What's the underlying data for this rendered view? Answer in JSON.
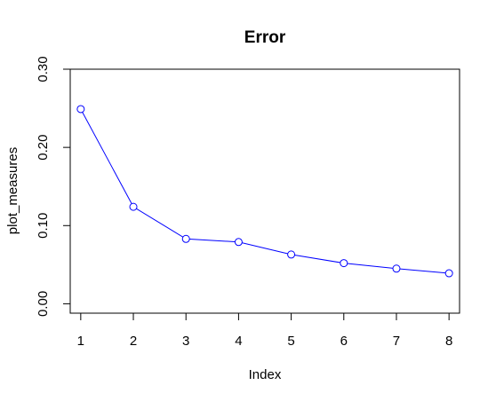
{
  "chart_data": {
    "type": "line",
    "title": "Error",
    "xlabel": "Index",
    "ylabel": "plot_measures",
    "x": [
      1,
      2,
      3,
      4,
      5,
      6,
      7,
      8
    ],
    "series": [
      {
        "values": [
          0.249,
          0.124,
          0.083,
          0.079,
          0.063,
          0.052,
          0.045,
          0.039
        ],
        "color": "#0000ff",
        "marker": "open-circle"
      }
    ],
    "x_ticks": [
      "1",
      "2",
      "3",
      "4",
      "5",
      "6",
      "7",
      "8"
    ],
    "y_ticks": [
      "0.00",
      "0.10",
      "0.20",
      "0.30"
    ],
    "xlim": [
      0.8,
      8.2
    ],
    "ylim": [
      -0.012,
      0.3
    ],
    "grid": false,
    "legend": "none"
  }
}
